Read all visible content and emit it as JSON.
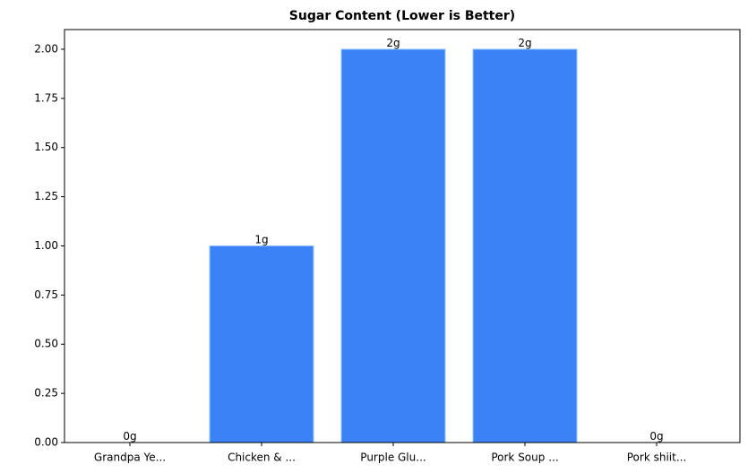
{
  "chart_data": {
    "type": "bar",
    "title": "Sugar Content (Lower is Better)",
    "categories": [
      "Grandpa Ye...",
      "Chicken & ...",
      "Purple Glu...",
      "Pork Soup ...",
      "Pork shiit..."
    ],
    "values": [
      0,
      1,
      2,
      2,
      0
    ],
    "value_labels": [
      "0g",
      "1g",
      "2g",
      "2g",
      "0g"
    ],
    "color": "#3b82f6",
    "ylim": [
      0,
      2.1
    ],
    "yticks": [
      {
        "value": 0,
        "label": "0.00"
      },
      {
        "value": 0.25,
        "label": "0.25"
      },
      {
        "value": 0.5,
        "label": "0.50"
      },
      {
        "value": 0.75,
        "label": "0.75"
      },
      {
        "value": 1,
        "label": "1.00"
      },
      {
        "value": 1.25,
        "label": "1.25"
      },
      {
        "value": 1.5,
        "label": "1.50"
      },
      {
        "value": 1.75,
        "label": "1.75"
      },
      {
        "value": 2,
        "label": "2.00"
      }
    ],
    "grid": false
  }
}
